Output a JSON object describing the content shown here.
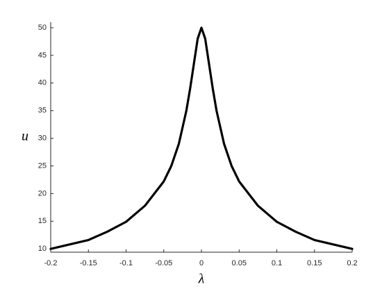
{
  "chart_data": {
    "type": "line",
    "x_label": "λ",
    "y_label": "u",
    "x": [
      -0.2,
      -0.175,
      -0.15,
      -0.125,
      -0.1,
      -0.075,
      -0.05,
      -0.04,
      -0.03,
      -0.02,
      -0.015,
      -0.01,
      -0.005,
      0,
      0.005,
      0.01,
      0.015,
      0.02,
      0.03,
      0.04,
      0.05,
      0.075,
      0.1,
      0.125,
      0.15,
      0.175,
      0.2
    ],
    "series": [
      {
        "color": "#000000",
        "values": [
          10,
          10.8,
          11.6,
          13.1,
          14.9,
          17.8,
          22.2,
          25,
          29,
          35,
          39,
          43.5,
          48,
          50,
          48,
          43.5,
          39,
          35,
          29,
          25,
          22.2,
          17.8,
          14.9,
          13.1,
          11.6,
          10.8,
          10
        ]
      }
    ],
    "xlim": [
      -0.2,
      0.2
    ],
    "ylim": [
      9.4,
      51
    ],
    "xticks": [
      -0.2,
      -0.15,
      -0.1,
      -0.05,
      0,
      0.05,
      0.1,
      0.15,
      0.2
    ],
    "yticks": [
      10,
      15,
      20,
      25,
      30,
      35,
      40,
      45,
      50
    ],
    "grid": false
  }
}
